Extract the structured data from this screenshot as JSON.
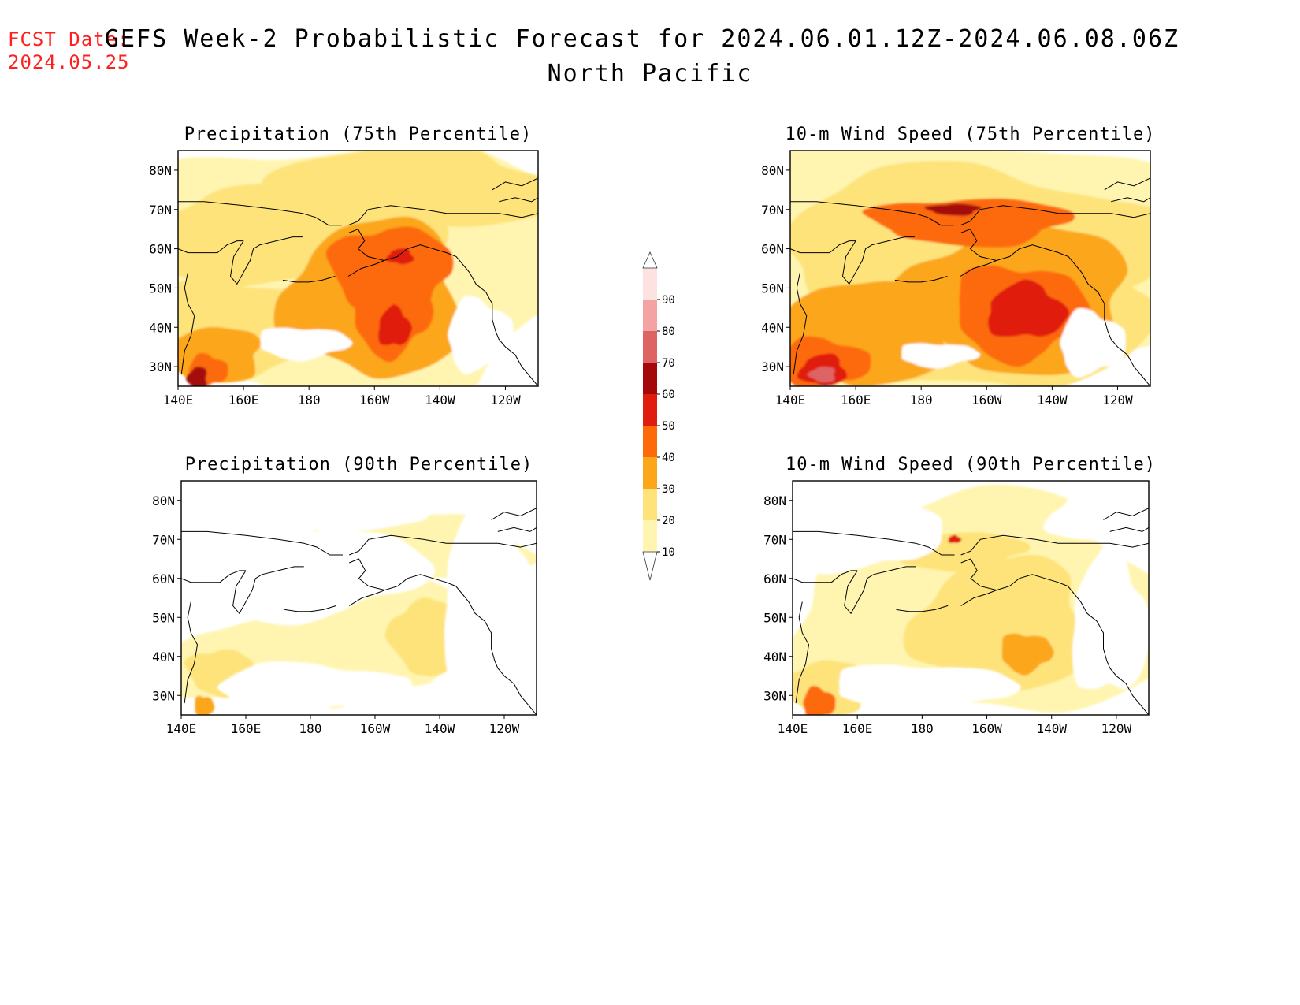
{
  "header": {
    "fcst_label": "FCST Date:",
    "fcst_date": "2024.05.25",
    "title": "GEFS Week-2 Probabilistic Forecast for 2024.06.01.12Z-2024.06.08.06Z",
    "subtitle": "North Pacific"
  },
  "panels": [
    {
      "title": "Precipitation (75th Percentile)",
      "field": "precip75"
    },
    {
      "title": "10-m Wind Speed (75th Percentile)",
      "field": "wind75"
    },
    {
      "title": "Precipitation (90th Percentile)",
      "field": "precip90"
    },
    {
      "title": "10-m Wind Speed (90th Percentile)",
      "field": "wind90"
    }
  ],
  "axes": {
    "lon_labels": [
      "140E",
      "160E",
      "180",
      "160W",
      "140W",
      "120W"
    ],
    "lat_labels": [
      "80N",
      "70N",
      "60N",
      "50N",
      "40N",
      "30N"
    ]
  },
  "colorbar": {
    "levels": [
      "10",
      "20",
      "30",
      "40",
      "50",
      "60",
      "70",
      "80",
      "90"
    ],
    "colors": [
      "#fff5b0",
      "#fde37a",
      "#fca61a",
      "#fd6a0a",
      "#e01c0c",
      "#a50808",
      "#de6464",
      "#f4a2a2",
      "#fde2e2"
    ]
  }
}
